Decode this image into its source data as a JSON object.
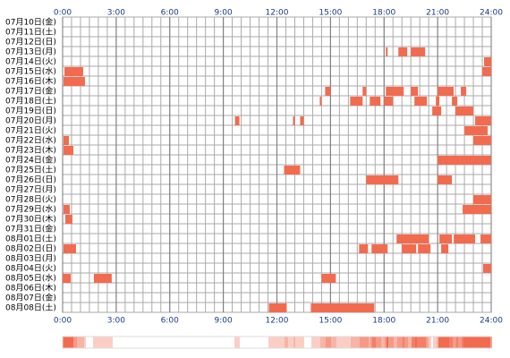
{
  "chart_data": {
    "type": "timeline",
    "color": "#f26b4f",
    "grid": true,
    "xlim": [
      0,
      24
    ],
    "xticks": [
      {
        "value": 0,
        "label": "0:00"
      },
      {
        "value": 3,
        "label": "3:00"
      },
      {
        "value": 6,
        "label": "6:00"
      },
      {
        "value": 9,
        "label": "9:00"
      },
      {
        "value": 12,
        "label": "12:00"
      },
      {
        "value": 15,
        "label": "15:00"
      },
      {
        "value": 18,
        "label": "18:00"
      },
      {
        "value": 21,
        "label": "21:00"
      },
      {
        "value": 24,
        "label": "24:00"
      }
    ],
    "rows": [
      {
        "label": "07月10日(金)",
        "segments": []
      },
      {
        "label": "07月11日(土)",
        "segments": []
      },
      {
        "label": "07月12日(日)",
        "segments": []
      },
      {
        "label": "07月13日(月)",
        "segments": [
          [
            18.1,
            18.2
          ],
          [
            18.8,
            19.3
          ],
          [
            19.5,
            20.3
          ]
        ]
      },
      {
        "label": "07月14日(火)",
        "segments": [
          [
            23.6,
            24
          ]
        ]
      },
      {
        "label": "07月15日(水)",
        "segments": [
          [
            0.1,
            1.15
          ],
          [
            23.5,
            24
          ]
        ]
      },
      {
        "label": "07月16日(木)",
        "segments": [
          [
            0.05,
            1.25
          ]
        ]
      },
      {
        "label": "07月17日(金)",
        "segments": [
          [
            14.7,
            15.0
          ],
          [
            16.8,
            17.0
          ],
          [
            18.1,
            19.1
          ],
          [
            19.5,
            19.9
          ],
          [
            21.0,
            21.9
          ],
          [
            22.3,
            22.6
          ]
        ]
      },
      {
        "label": "07月18日(土)",
        "segments": [
          [
            14.4,
            14.5
          ],
          [
            16.1,
            16.8
          ],
          [
            17.2,
            17.8
          ],
          [
            18.0,
            18.5
          ],
          [
            19.7,
            20.4
          ],
          [
            20.9,
            21.1
          ],
          [
            21.8,
            22.1
          ]
        ]
      },
      {
        "label": "07月19日(日)",
        "segments": [
          [
            20.7,
            21.2
          ],
          [
            22.0,
            23.0
          ]
        ]
      },
      {
        "label": "07月20日(月)",
        "segments": [
          [
            9.65,
            9.9
          ],
          [
            12.9,
            13.0
          ],
          [
            13.3,
            13.5
          ],
          [
            23.1,
            24
          ]
        ]
      },
      {
        "label": "07月21日(火)",
        "segments": [
          [
            22.5,
            23.8
          ]
        ]
      },
      {
        "label": "07月22日(水)",
        "segments": [
          [
            0.05,
            0.35
          ],
          [
            23.0,
            24
          ]
        ]
      },
      {
        "label": "07月23日(木)",
        "segments": [
          [
            0.05,
            0.6
          ]
        ]
      },
      {
        "label": "07月24日(金)",
        "segments": [
          [
            21.0,
            24
          ]
        ]
      },
      {
        "label": "07月25日(土)",
        "segments": [
          [
            12.4,
            13.3
          ]
        ]
      },
      {
        "label": "07月26日(日)",
        "segments": [
          [
            17.0,
            18.8
          ],
          [
            21.0,
            21.8
          ]
        ]
      },
      {
        "label": "07月27日(月)",
        "segments": []
      },
      {
        "label": "07月28日(火)",
        "segments": [
          [
            23.0,
            24
          ]
        ]
      },
      {
        "label": "07月29日(水)",
        "segments": [
          [
            0.05,
            0.4
          ],
          [
            22.4,
            24
          ]
        ]
      },
      {
        "label": "07月30日(木)",
        "segments": [
          [
            0.15,
            0.55
          ]
        ]
      },
      {
        "label": "07月31日(金)",
        "segments": []
      },
      {
        "label": "08月01日(土)",
        "segments": [
          [
            18.7,
            20.5
          ],
          [
            21.1,
            21.8
          ],
          [
            21.9,
            23.1
          ],
          [
            23.4,
            24
          ]
        ]
      },
      {
        "label": "08月02日(日)",
        "segments": [
          [
            0.05,
            0.75
          ],
          [
            16.6,
            17.1
          ],
          [
            17.3,
            18.2
          ],
          [
            19.0,
            19.8
          ],
          [
            19.9,
            20.6
          ],
          [
            21.2,
            21.6
          ]
        ]
      },
      {
        "label": "08月03日(月)",
        "segments": []
      },
      {
        "label": "08月04日(火)",
        "segments": [
          [
            23.55,
            24
          ]
        ]
      },
      {
        "label": "08月05日(水)",
        "segments": [
          [
            0,
            0.45
          ],
          [
            1.75,
            2.75
          ],
          [
            14.5,
            15.3
          ]
        ]
      },
      {
        "label": "08月06日(木)",
        "segments": []
      },
      {
        "label": "08月07日(金)",
        "segments": []
      },
      {
        "label": "08月08日(土)",
        "segments": [
          [
            11.55,
            12.55
          ],
          [
            13.9,
            17.45
          ]
        ]
      }
    ]
  }
}
